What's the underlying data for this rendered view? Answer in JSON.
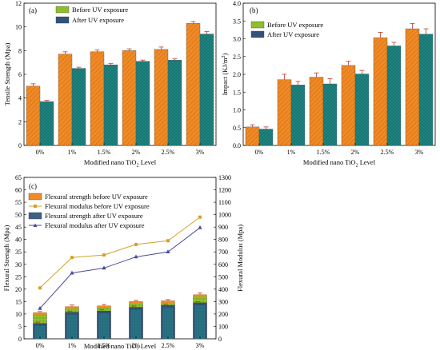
{
  "chart_data": [
    {
      "panel": "(a)",
      "type": "bar",
      "categories": [
        "0%",
        "1%",
        "1.5%",
        "2%",
        "2.5%",
        "3%"
      ],
      "series": [
        {
          "name": "Before UV exposure",
          "values": [
            5.0,
            7.7,
            7.9,
            8.0,
            8.1,
            10.3
          ],
          "errors": [
            0.2,
            0.2,
            0.15,
            0.15,
            0.2,
            0.15
          ],
          "color": "#f08a24"
        },
        {
          "name": "After UV exposure",
          "values": [
            3.7,
            6.5,
            6.8,
            7.1,
            7.2,
            9.4
          ],
          "errors": [
            0.1,
            0.1,
            0.1,
            0.1,
            0.1,
            0.2
          ],
          "color": "#1f8a86"
        }
      ],
      "xlabel": "Modified nano TiO",
      "xlabel_sub": "2",
      "xlabel_tail": " Level",
      "ylabel": "Tensile Strength (Mpa)",
      "ylim": [
        0,
        12
      ],
      "yticks": [
        0,
        2,
        4,
        6,
        8,
        10,
        12
      ],
      "legend_position": "top-left"
    },
    {
      "panel": "(b)",
      "type": "bar",
      "categories": [
        "0%",
        "1%",
        "1.5%",
        "2%",
        "2.5%",
        "3%"
      ],
      "series": [
        {
          "name": "Before UV exposure",
          "values": [
            0.52,
            1.85,
            1.92,
            2.25,
            3.03,
            3.28
          ],
          "errors": [
            0.06,
            0.15,
            0.12,
            0.12,
            0.15,
            0.15
          ],
          "color": "#f08a24"
        },
        {
          "name": "After UV exposure",
          "values": [
            0.46,
            1.7,
            1.73,
            2.01,
            2.8,
            3.13
          ],
          "errors": [
            0.06,
            0.1,
            0.15,
            0.1,
            0.1,
            0.15
          ],
          "color": "#1f8a86"
        }
      ],
      "xlabel": "Modified nano TiO",
      "xlabel_sub": "2",
      "xlabel_tail": " Level",
      "ylabel": "Impact (KJ/m",
      "ylabel_sup": "2",
      "ylabel_tail": ")",
      "ylim": [
        0,
        4.0
      ],
      "yticks": [
        "0.0",
        "0.5",
        "1.0",
        "1.5",
        "2.0",
        "2.5",
        "3.0",
        "3.5",
        "4.0"
      ],
      "legend_position": "top-left"
    },
    {
      "panel": "(c)",
      "type": "bar+line",
      "categories": [
        "0%",
        "1%",
        "1.5%",
        "2%",
        "2.5%",
        "3%"
      ],
      "series": [
        {
          "name": "Flexural strength before UV exposure",
          "kind": "bar",
          "axis": "left",
          "values": [
            10.5,
            13.0,
            13.3,
            15.0,
            15.3,
            17.8
          ],
          "errors": [
            0.5,
            0.6,
            0.5,
            0.5,
            0.5,
            0.6
          ],
          "color": "#f08a24"
        },
        {
          "name": "Flexural modulus before UV exposure",
          "kind": "line",
          "axis": "right",
          "marker": "square",
          "values": [
            410,
            655,
            675,
            760,
            790,
            980
          ],
          "color": "#d4a12a"
        },
        {
          "name": "Flexural strength after UV exposure",
          "kind": "bar",
          "axis": "left",
          "values": [
            6.2,
            10.7,
            11.2,
            12.7,
            13.5,
            14.5
          ],
          "errors": [
            0.5,
            0.5,
            0.5,
            0.5,
            0.5,
            0.5
          ],
          "color": "#3e5f87"
        },
        {
          "name": "Flexural modulus after UV exposure",
          "kind": "line",
          "axis": "right",
          "marker": "triangle",
          "values": [
            245,
            530,
            570,
            660,
            700,
            895
          ],
          "color": "#4a4a9a"
        }
      ],
      "xlabel": "Modified nano TiO",
      "xlabel_sub": "2",
      "xlabel_tail": " Level",
      "ylabel": "Flexural Strength (Mpa)",
      "ylabel_right": "Flexural Modulus (Mpa)",
      "ylim": [
        0,
        65
      ],
      "yticks": [
        0,
        5,
        10,
        15,
        20,
        25,
        30,
        35,
        40,
        45,
        50,
        55,
        60,
        65
      ],
      "ylim_right": [
        0,
        1300
      ],
      "yticks_right": [
        0,
        100,
        200,
        300,
        400,
        500,
        600,
        700,
        800,
        900,
        1000,
        1100,
        1200,
        1300
      ],
      "legend_position": "top-left"
    }
  ]
}
